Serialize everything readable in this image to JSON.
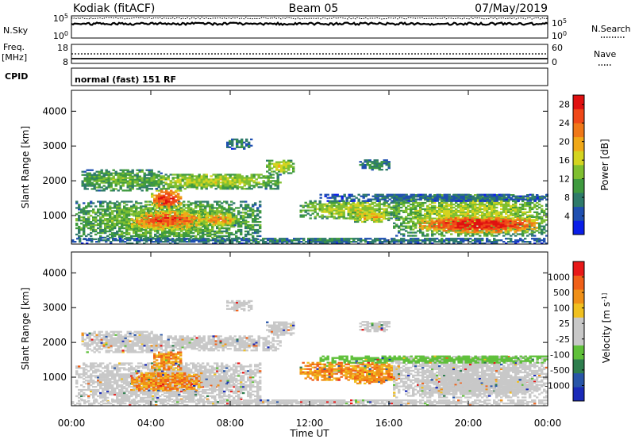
{
  "header": {
    "station": "Kodiak (fitACF)",
    "beam": "Beam 05",
    "date": "07/May/2019"
  },
  "strips": {
    "nsky_label": "N.Sky",
    "nsky_ticks": [
      "10^5",
      "10^0"
    ],
    "nsearch_label": "N.Search",
    "nsearch_ticks": [
      "10^5",
      "10^0"
    ],
    "freq_label_line1": "Freq.",
    "freq_label_line2": "[MHz]",
    "freq_ticks": [
      "18",
      "8"
    ],
    "nave_label": "Nave",
    "nave_ticks": [
      "60",
      "0"
    ],
    "cpid_label": "CPID",
    "cpid_value": "normal (fast) 151 RF"
  },
  "chart_data": [
    {
      "type": "heatmap",
      "name": "power",
      "ylabel": "Slant Range [km]",
      "xlabel": "Time UT",
      "x_ticks": [
        "00:00",
        "04:00",
        "08:00",
        "12:00",
        "16:00",
        "20:00",
        "00:00"
      ],
      "y_ticks": [
        1000,
        2000,
        3000,
        4000
      ],
      "ylim": [
        180,
        4600
      ],
      "xlim_hours": [
        0,
        24
      ],
      "colorbar": {
        "label": "Power [dB]",
        "ticks": [
          "4",
          "8",
          "12",
          "16",
          "20",
          "24",
          "28"
        ],
        "colors": [
          "#0a1ee8",
          "#1f4fb0",
          "#2e7a6a",
          "#3f9a3f",
          "#7fbf30",
          "#d4d420",
          "#f0a818",
          "#f07818",
          "#f04818",
          "#e01010"
        ]
      }
    },
    {
      "type": "heatmap",
      "name": "velocity",
      "ylabel": "Slant Range [km]",
      "xlabel": "Time UT",
      "x_ticks": [
        "00:00",
        "04:00",
        "08:00",
        "12:00",
        "16:00",
        "20:00",
        "00:00"
      ],
      "y_ticks": [
        1000,
        2000,
        3000,
        4000
      ],
      "ylim": [
        180,
        4600
      ],
      "xlim_hours": [
        0,
        24
      ],
      "colorbar": {
        "label": "Velocity [m s^-1]",
        "ticks": [
          "1000",
          "500",
          "100",
          "25",
          "-25",
          "-100",
          "-500",
          "-1000"
        ],
        "colors": [
          "#1a2ab8",
          "#2855a8",
          "#2e7e4e",
          "#5fc03a",
          "#c8c8c8",
          "#c8c8c8",
          "#f0c020",
          "#f09018",
          "#f06018",
          "#e81818"
        ]
      }
    }
  ]
}
